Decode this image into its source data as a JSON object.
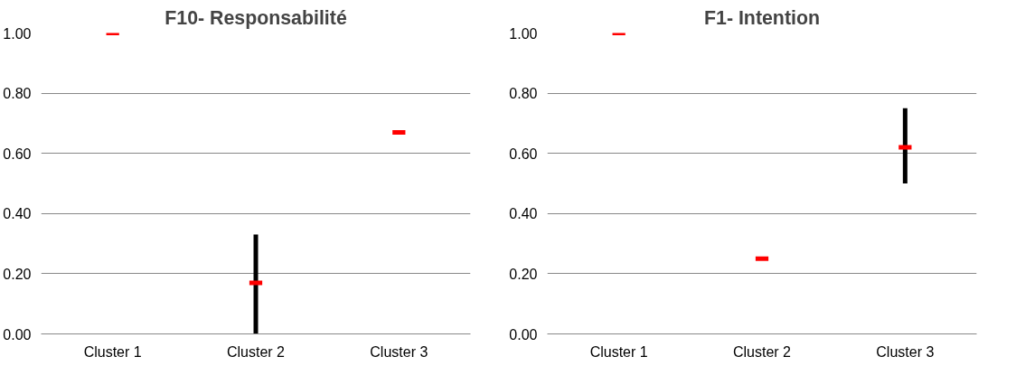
{
  "chart_data": [
    {
      "type": "scatter",
      "title": "F10- Responsabilité",
      "categories": [
        "Cluster 1",
        "Cluster 2",
        "Cluster 3"
      ],
      "series": [
        {
          "color": "#ff0000",
          "values": [
            1.0,
            0.17,
            0.67
          ],
          "errors": [
            null,
            [
              0.0,
              0.33
            ],
            null
          ]
        }
      ],
      "ylim": [
        0,
        1
      ],
      "yticks": [
        {
          "value": 0,
          "label": "0.00"
        },
        {
          "value": 0.2,
          "label": "0.20"
        },
        {
          "value": 0.4,
          "label": "0.40"
        },
        {
          "value": 0.6,
          "label": "0.60"
        },
        {
          "value": 0.8,
          "label": "0.80"
        },
        {
          "value": 1.0,
          "label": "1.00"
        }
      ],
      "grid": "y"
    },
    {
      "type": "scatter",
      "title": "F1- Intention",
      "categories": [
        "Cluster 1",
        "Cluster 2",
        "Cluster 3"
      ],
      "series": [
        {
          "color": "#ff0000",
          "values": [
            1.0,
            0.25,
            0.62
          ],
          "errors": [
            null,
            null,
            [
              0.5,
              0.75
            ]
          ]
        }
      ],
      "ylim": [
        0,
        1
      ],
      "yticks": [
        {
          "value": 0,
          "label": "0.00"
        },
        {
          "value": 0.2,
          "label": "0.20"
        },
        {
          "value": 0.4,
          "label": "0.40"
        },
        {
          "value": 0.6,
          "label": "0.60"
        },
        {
          "value": 0.8,
          "label": "0.80"
        },
        {
          "value": 1.0,
          "label": "1.00"
        }
      ],
      "grid": "y"
    }
  ]
}
